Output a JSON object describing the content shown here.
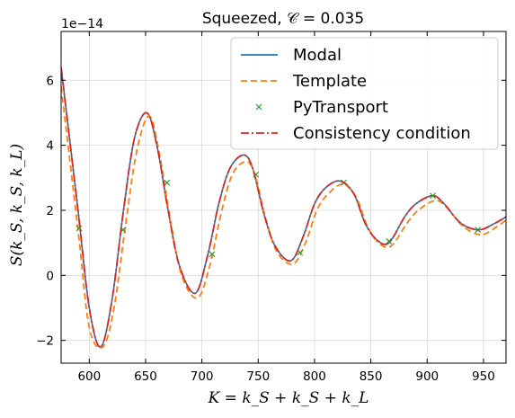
{
  "chart_data": {
    "type": "line",
    "title": "Squeezed, 𝒞 = 0.035",
    "xlabel": "K = k_S + k_S + k_L",
    "ylabel": "S(k_S, k_S, k_L)",
    "y_offset_label": "1e−14",
    "xlim": [
      575,
      970
    ],
    "ylim": [
      -2.7,
      7.5
    ],
    "xticks": [
      600,
      650,
      700,
      750,
      800,
      850,
      900,
      950
    ],
    "yticks": [
      -2,
      0,
      2,
      4,
      6
    ],
    "ytick_labels": [
      "−2",
      "0",
      "2",
      "4",
      "6"
    ],
    "grid": true,
    "legend_position": "upper-right",
    "series": [
      {
        "name": "Modal",
        "style": "solid",
        "color": "#1f77b4",
        "x": [
          575,
          590,
          600,
          610,
          620,
          630,
          640,
          651,
          660,
          670,
          680,
          694,
          705,
          715,
          725,
          737,
          745,
          755,
          765,
          779,
          790,
          800,
          810,
          823,
          835,
          845,
          855,
          866,
          880,
          890,
          905,
          915,
          930,
          946,
          960,
          970
        ],
        "values": [
          6.4,
          2.0,
          -1.0,
          -2.2,
          -0.8,
          1.9,
          4.2,
          5.0,
          4.0,
          2.0,
          0.3,
          -0.55,
          0.6,
          2.2,
          3.3,
          3.7,
          3.3,
          1.9,
          0.9,
          0.45,
          1.2,
          2.2,
          2.7,
          2.9,
          2.5,
          1.6,
          1.1,
          1.0,
          1.8,
          2.2,
          2.45,
          2.2,
          1.6,
          1.4,
          1.6,
          1.8
        ]
      },
      {
        "name": "Template",
        "style": "dashed",
        "color": "#ff7f0e",
        "x": [
          575,
          590,
          600,
          612,
          622,
          632,
          642,
          653,
          662,
          672,
          682,
          696,
          707,
          717,
          727,
          739,
          747,
          757,
          767,
          781,
          792,
          802,
          812,
          825,
          837,
          847,
          857,
          868,
          882,
          892,
          907,
          917,
          932,
          948,
          962,
          970
        ],
        "values": [
          5.8,
          1.4,
          -1.6,
          -2.2,
          -1.0,
          1.5,
          3.8,
          4.9,
          3.8,
          1.7,
          0.0,
          -0.7,
          0.3,
          1.9,
          3.1,
          3.5,
          3.1,
          1.7,
          0.7,
          0.35,
          1.0,
          2.0,
          2.5,
          2.8,
          2.4,
          1.5,
          1.0,
          0.9,
          1.6,
          2.0,
          2.3,
          2.1,
          1.5,
          1.25,
          1.5,
          1.7
        ]
      },
      {
        "name": "PyTransport",
        "style": "markers",
        "color": "#2ca02c",
        "x": [
          591,
          630,
          669,
          709,
          748,
          787,
          826,
          866,
          905,
          945
        ],
        "values": [
          1.45,
          1.4,
          2.85,
          0.65,
          3.1,
          0.7,
          2.85,
          1.05,
          2.45,
          1.4
        ]
      },
      {
        "name": "Consistency condition",
        "style": "dashdot",
        "color": "#d62728",
        "x": [
          575,
          590,
          600,
          610,
          620,
          630,
          640,
          651,
          660,
          670,
          680,
          694,
          705,
          715,
          725,
          737,
          745,
          755,
          765,
          779,
          790,
          800,
          810,
          823,
          835,
          845,
          855,
          866,
          880,
          890,
          905,
          915,
          930,
          946,
          960,
          970
        ],
        "values": [
          6.4,
          2.0,
          -1.0,
          -2.2,
          -0.8,
          1.9,
          4.2,
          5.0,
          4.0,
          2.0,
          0.3,
          -0.55,
          0.6,
          2.2,
          3.3,
          3.7,
          3.3,
          1.9,
          0.9,
          0.45,
          1.2,
          2.2,
          2.7,
          2.9,
          2.5,
          1.6,
          1.1,
          1.0,
          1.8,
          2.2,
          2.45,
          2.2,
          1.6,
          1.4,
          1.6,
          1.8
        ]
      }
    ]
  }
}
